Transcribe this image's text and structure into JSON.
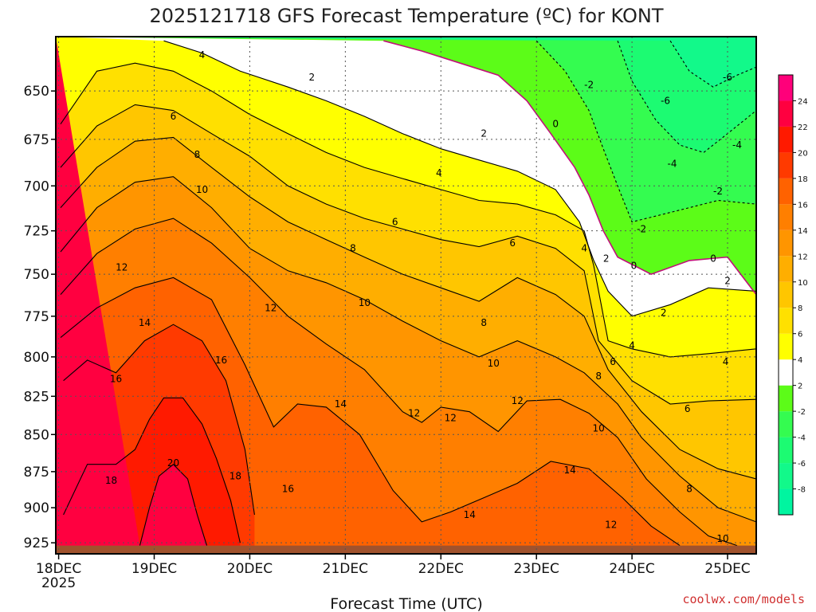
{
  "chart_data": {
    "type": "heatmap",
    "title": "2025121718 GFS Forecast Temperature (ºC) for KONT",
    "xlabel": "Forecast Time (UTC)",
    "ylabel": "",
    "x_ticks": [
      {
        "label": "18DEC",
        "sublabel": "2025",
        "day": 0
      },
      {
        "label": "19DEC",
        "sublabel": "",
        "day": 1
      },
      {
        "label": "20DEC",
        "sublabel": "",
        "day": 2
      },
      {
        "label": "21DEC",
        "sublabel": "",
        "day": 3
      },
      {
        "label": "22DEC",
        "sublabel": "",
        "day": 4
      },
      {
        "label": "23DEC",
        "sublabel": "",
        "day": 5
      },
      {
        "label": "24DEC",
        "sublabel": "",
        "day": 6
      },
      {
        "label": "25DEC",
        "sublabel": "",
        "day": 7
      }
    ],
    "x_range_days": [
      -0.03,
      7.3
    ],
    "y_ticks": [
      650,
      675,
      700,
      725,
      750,
      775,
      800,
      825,
      850,
      875,
      900,
      925
    ],
    "y_range_hpa": [
      623,
      933
    ],
    "y_scale": "log",
    "colorbar_levels": [
      -10,
      -8,
      -6,
      -4,
      -2,
      2,
      4,
      6,
      8,
      10,
      12,
      14,
      16,
      18,
      20,
      22,
      24,
      26
    ],
    "colorbar_tick_labels": [
      "-8",
      "-6",
      "-4",
      "-2",
      "2",
      "4",
      "6",
      "8",
      "10",
      "12",
      "14",
      "16",
      "18",
      "20",
      "22",
      "24"
    ],
    "colorbar_colors": {
      "-10": "#00f5a0",
      "-8": "#12f98a",
      "-6": "#1cfb72",
      "-4": "#34fc50",
      "-2": "#5cfc18",
      "0": "#ffffff",
      "2": "#ffff00",
      "4": "#ffe000",
      "6": "#ffc600",
      "8": "#ffae00",
      "10": "#ff9500",
      "12": "#ff7f00",
      "14": "#ff6200",
      "16": "#ff3a00",
      "18": "#ff1a00",
      "20": "#ff0040",
      "22": "#ff007a",
      "24": "#ff0aa5"
    },
    "ground_color": "#a0522d",
    "surface_pressure_hpa": 927,
    "isotherms": [
      {
        "temp": 16,
        "points": [
          [
            0.05,
            815
          ],
          [
            0.3,
            802
          ],
          [
            0.6,
            810
          ],
          [
            0.9,
            790
          ],
          [
            1.2,
            780
          ],
          [
            1.5,
            790
          ],
          [
            1.75,
            815
          ],
          [
            1.95,
            860
          ],
          [
            2.05,
            905
          ]
        ]
      },
      {
        "temp": 14,
        "points": [
          [
            0.02,
            788
          ],
          [
            0.4,
            770
          ],
          [
            0.8,
            758
          ],
          [
            1.2,
            752
          ],
          [
            1.6,
            765
          ],
          [
            1.95,
            805
          ],
          [
            2.25,
            845
          ],
          [
            2.5,
            830
          ],
          [
            2.8,
            832
          ],
          [
            3.15,
            850
          ],
          [
            3.5,
            888
          ],
          [
            3.8,
            910
          ],
          [
            4.1,
            903
          ],
          [
            4.45,
            893
          ],
          [
            4.8,
            883
          ],
          [
            5.15,
            868
          ],
          [
            5.55,
            873
          ],
          [
            5.9,
            893
          ],
          [
            6.2,
            913
          ],
          [
            6.5,
            927
          ]
        ]
      },
      {
        "temp": 12,
        "points": [
          [
            0.02,
            762
          ],
          [
            0.4,
            738
          ],
          [
            0.8,
            724
          ],
          [
            1.2,
            718
          ],
          [
            1.6,
            732
          ],
          [
            2.0,
            752
          ],
          [
            2.4,
            775
          ],
          [
            2.8,
            792
          ],
          [
            3.2,
            808
          ],
          [
            3.6,
            835
          ],
          [
            3.8,
            842
          ],
          [
            4.0,
            832
          ],
          [
            4.3,
            835
          ],
          [
            4.6,
            848
          ],
          [
            4.9,
            828
          ],
          [
            5.25,
            827
          ],
          [
            5.55,
            836
          ],
          [
            5.85,
            852
          ],
          [
            6.15,
            880
          ],
          [
            6.5,
            903
          ],
          [
            6.8,
            920
          ],
          [
            7.1,
            927
          ]
        ]
      },
      {
        "temp": 10,
        "points": [
          [
            0.02,
            737
          ],
          [
            0.4,
            712
          ],
          [
            0.8,
            698
          ],
          [
            1.2,
            695
          ],
          [
            1.6,
            712
          ],
          [
            2.0,
            735
          ],
          [
            2.4,
            748
          ],
          [
            2.8,
            755
          ],
          [
            3.2,
            765
          ],
          [
            3.6,
            778
          ],
          [
            4.0,
            790
          ],
          [
            4.4,
            800
          ],
          [
            4.8,
            790
          ],
          [
            5.2,
            800
          ],
          [
            5.5,
            810
          ],
          [
            5.85,
            830
          ],
          [
            6.1,
            852
          ],
          [
            6.5,
            878
          ],
          [
            6.9,
            900
          ],
          [
            7.3,
            910
          ]
        ]
      },
      {
        "temp": 8,
        "points": [
          [
            0.02,
            712
          ],
          [
            0.4,
            690
          ],
          [
            0.8,
            676
          ],
          [
            1.2,
            674
          ],
          [
            1.6,
            690
          ],
          [
            2.0,
            706
          ],
          [
            2.4,
            720
          ],
          [
            2.8,
            730
          ],
          [
            3.2,
            740
          ],
          [
            3.6,
            750
          ],
          [
            4.0,
            758
          ],
          [
            4.4,
            766
          ],
          [
            4.8,
            752
          ],
          [
            5.2,
            762
          ],
          [
            5.5,
            775
          ],
          [
            5.75,
            808
          ],
          [
            6.1,
            835
          ],
          [
            6.5,
            860
          ],
          [
            6.9,
            873
          ],
          [
            7.3,
            880
          ]
        ]
      },
      {
        "temp": 6,
        "points": [
          [
            0.02,
            690
          ],
          [
            0.4,
            668
          ],
          [
            0.8,
            657
          ],
          [
            1.2,
            660
          ],
          [
            1.6,
            672
          ],
          [
            2.0,
            684
          ],
          [
            2.4,
            700
          ],
          [
            2.8,
            710
          ],
          [
            3.2,
            718
          ],
          [
            3.6,
            724
          ],
          [
            4.0,
            730
          ],
          [
            4.4,
            734
          ],
          [
            4.8,
            728
          ],
          [
            5.2,
            735
          ],
          [
            5.5,
            748
          ],
          [
            5.65,
            790
          ],
          [
            6.0,
            815
          ],
          [
            6.4,
            830
          ],
          [
            6.8,
            828
          ],
          [
            7.3,
            827
          ]
        ]
      },
      {
        "temp": 4,
        "points": [
          [
            0.02,
            667
          ],
          [
            0.4,
            640
          ],
          [
            0.8,
            636
          ],
          [
            1.2,
            640
          ],
          [
            1.6,
            650
          ],
          [
            2.0,
            662
          ],
          [
            2.4,
            672
          ],
          [
            2.8,
            682
          ],
          [
            3.2,
            690
          ],
          [
            3.6,
            696
          ],
          [
            4.0,
            702
          ],
          [
            4.4,
            708
          ],
          [
            4.8,
            710
          ],
          [
            5.2,
            716
          ],
          [
            5.5,
            725
          ],
          [
            5.6,
            745
          ],
          [
            5.75,
            790
          ],
          [
            6.0,
            795
          ],
          [
            6.4,
            800
          ],
          [
            6.8,
            798
          ],
          [
            7.3,
            795
          ]
        ]
      },
      {
        "temp": 2,
        "points": [
          [
            1.1,
            625
          ],
          [
            1.5,
            631
          ],
          [
            1.9,
            640
          ],
          [
            2.4,
            648
          ],
          [
            2.8,
            655
          ],
          [
            3.2,
            663
          ],
          [
            3.6,
            672
          ],
          [
            4.0,
            680
          ],
          [
            4.4,
            686
          ],
          [
            4.8,
            692
          ],
          [
            5.2,
            702
          ],
          [
            5.45,
            720
          ],
          [
            5.6,
            742
          ],
          [
            5.75,
            760
          ],
          [
            6.0,
            775
          ],
          [
            6.4,
            768
          ],
          [
            6.8,
            758
          ],
          [
            7.3,
            760
          ]
        ]
      },
      {
        "temp": 0,
        "points": [
          [
            3.4,
            625
          ],
          [
            3.8,
            630
          ],
          [
            4.2,
            636
          ],
          [
            4.6,
            642
          ],
          [
            4.9,
            655
          ],
          [
            5.15,
            672
          ],
          [
            5.4,
            690
          ],
          [
            5.55,
            705
          ],
          [
            5.7,
            725
          ],
          [
            5.85,
            740
          ],
          [
            6.2,
            750
          ],
          [
            6.6,
            742
          ],
          [
            7.0,
            740
          ],
          [
            7.3,
            762
          ]
        ]
      },
      {
        "temp": -2,
        "points": [
          [
            5.0,
            625
          ],
          [
            5.3,
            640
          ],
          [
            5.55,
            660
          ],
          [
            5.7,
            680
          ],
          [
            5.85,
            700
          ],
          [
            6.0,
            720
          ],
          [
            6.3,
            716
          ],
          [
            6.6,
            712
          ],
          [
            6.9,
            708
          ],
          [
            7.3,
            710
          ]
        ]
      },
      {
        "temp": -4,
        "points": [
          [
            5.85,
            625
          ],
          [
            6.0,
            645
          ],
          [
            6.25,
            665
          ],
          [
            6.5,
            678
          ],
          [
            6.75,
            682
          ],
          [
            7.0,
            672
          ],
          [
            7.3,
            660
          ]
        ]
      },
      {
        "temp": -6,
        "points": [
          [
            6.4,
            625
          ],
          [
            6.6,
            640
          ],
          [
            6.85,
            648
          ],
          [
            7.1,
            642
          ],
          [
            7.3,
            638
          ]
        ]
      },
      {
        "temp": 18,
        "points": [
          [
            0.05,
            905
          ],
          [
            0.3,
            870
          ],
          [
            0.6,
            870
          ],
          [
            0.8,
            860
          ],
          [
            0.95,
            840
          ],
          [
            1.1,
            826
          ],
          [
            1.3,
            826
          ],
          [
            1.5,
            843
          ],
          [
            1.65,
            866
          ],
          [
            1.8,
            895
          ],
          [
            1.9,
            925
          ]
        ]
      },
      {
        "temp": 20,
        "points": [
          [
            0.85,
            927
          ],
          [
            0.95,
            900
          ],
          [
            1.05,
            878
          ],
          [
            1.2,
            870
          ],
          [
            1.35,
            880
          ],
          [
            1.45,
            905
          ],
          [
            1.55,
            927
          ]
        ]
      }
    ],
    "contour_labels": [
      {
        "text": "4",
        "day": 1.5,
        "hpa": 632
      },
      {
        "text": "2",
        "day": 2.65,
        "hpa": 643
      },
      {
        "text": "6",
        "day": 1.2,
        "hpa": 663
      },
      {
        "text": "2",
        "day": 4.45,
        "hpa": 672
      },
      {
        "text": "0",
        "day": 5.2,
        "hpa": 667
      },
      {
        "text": "-2",
        "day": 5.55,
        "hpa": 647
      },
      {
        "text": "-6",
        "day": 6.35,
        "hpa": 655
      },
      {
        "text": "-6",
        "day": 7.0,
        "hpa": 643
      },
      {
        "text": "8",
        "day": 1.45,
        "hpa": 683
      },
      {
        "text": "4",
        "day": 3.98,
        "hpa": 693
      },
      {
        "text": "-4",
        "day": 6.42,
        "hpa": 688
      },
      {
        "text": "-4",
        "day": 7.1,
        "hpa": 678
      },
      {
        "text": "10",
        "day": 1.5,
        "hpa": 702
      },
      {
        "text": "6",
        "day": 3.52,
        "hpa": 720
      },
      {
        "text": "-2",
        "day": 6.9,
        "hpa": 703
      },
      {
        "text": "-2",
        "day": 6.1,
        "hpa": 724
      },
      {
        "text": "8",
        "day": 3.08,
        "hpa": 735
      },
      {
        "text": "6",
        "day": 4.75,
        "hpa": 732
      },
      {
        "text": "4",
        "day": 5.5,
        "hpa": 735
      },
      {
        "text": "2",
        "day": 5.73,
        "hpa": 741
      },
      {
        "text": "0",
        "day": 6.02,
        "hpa": 745
      },
      {
        "text": "0",
        "day": 6.85,
        "hpa": 741
      },
      {
        "text": "12",
        "day": 0.66,
        "hpa": 746
      },
      {
        "text": "2",
        "day": 7.0,
        "hpa": 754
      },
      {
        "text": "12",
        "day": 2.22,
        "hpa": 770
      },
      {
        "text": "10",
        "day": 3.2,
        "hpa": 767
      },
      {
        "text": "2",
        "day": 6.33,
        "hpa": 773
      },
      {
        "text": "14",
        "day": 0.9,
        "hpa": 779
      },
      {
        "text": "8",
        "day": 4.45,
        "hpa": 779
      },
      {
        "text": "4",
        "day": 6.0,
        "hpa": 793
      },
      {
        "text": "16",
        "day": 1.7,
        "hpa": 802
      },
      {
        "text": "10",
        "day": 4.55,
        "hpa": 804
      },
      {
        "text": "6",
        "day": 5.8,
        "hpa": 803
      },
      {
        "text": "4",
        "day": 6.98,
        "hpa": 803
      },
      {
        "text": "8",
        "day": 5.65,
        "hpa": 812
      },
      {
        "text": "16",
        "day": 0.6,
        "hpa": 814
      },
      {
        "text": "14",
        "day": 2.95,
        "hpa": 830
      },
      {
        "text": "12",
        "day": 4.8,
        "hpa": 828
      },
      {
        "text": "12",
        "day": 3.72,
        "hpa": 836
      },
      {
        "text": "12",
        "day": 4.1,
        "hpa": 839
      },
      {
        "text": "6",
        "day": 6.58,
        "hpa": 833
      },
      {
        "text": "10",
        "day": 5.65,
        "hpa": 846
      },
      {
        "text": "20",
        "day": 1.2,
        "hpa": 869
      },
      {
        "text": "14",
        "day": 5.35,
        "hpa": 874
      },
      {
        "text": "18",
        "day": 0.55,
        "hpa": 881
      },
      {
        "text": "18",
        "day": 1.85,
        "hpa": 878
      },
      {
        "text": "8",
        "day": 6.6,
        "hpa": 887
      },
      {
        "text": "16",
        "day": 2.4,
        "hpa": 887
      },
      {
        "text": "14",
        "day": 4.3,
        "hpa": 905
      },
      {
        "text": "12",
        "day": 5.78,
        "hpa": 912
      },
      {
        "text": "10",
        "day": 6.95,
        "hpa": 922
      }
    ]
  },
  "footer": {
    "credit": "coolwx.com/models"
  }
}
